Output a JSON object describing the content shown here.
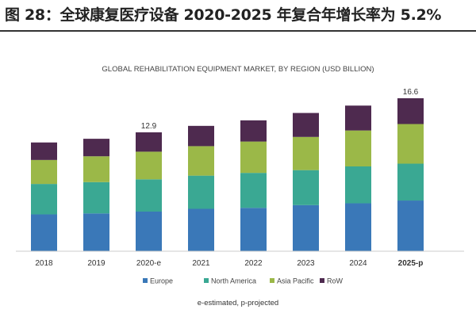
{
  "heading": "图 28：全球康复医疗设备 2020-2025 年复合年增长率为 5.2%",
  "chart_data": {
    "type": "bar",
    "stacked": true,
    "title": "GLOBAL REHABILITATION EQUIPMENT MARKET, BY REGION (USD BILLION)",
    "categories": [
      "2018",
      "2019",
      "2020-e",
      "2021",
      "2022",
      "2023",
      "2024",
      "2025-p"
    ],
    "series": [
      {
        "name": "Europe",
        "color": "#3a78b8",
        "values": [
          4.0,
          4.1,
          4.3,
          4.6,
          4.7,
          5.0,
          5.2,
          5.5
        ]
      },
      {
        "name": "North America",
        "color": "#3aa893",
        "values": [
          3.3,
          3.4,
          3.5,
          3.6,
          3.8,
          3.8,
          4.0,
          4.0
        ]
      },
      {
        "name": "Asia Pacific",
        "color": "#9bb848",
        "values": [
          2.6,
          2.8,
          3.0,
          3.2,
          3.4,
          3.6,
          3.9,
          4.3
        ]
      },
      {
        "name": "RoW",
        "color": "#4e2a4f",
        "values": [
          1.9,
          1.9,
          2.1,
          2.2,
          2.3,
          2.6,
          2.7,
          2.8
        ]
      }
    ],
    "data_labels": [
      {
        "category": "2020-e",
        "text": "12.9"
      },
      {
        "category": "2025-p",
        "text": "16.6"
      }
    ],
    "xlabel": "",
    "ylabel": "",
    "ylim": [
      0,
      17
    ],
    "grid": false,
    "legend": "bottom",
    "footnote": "e-estimated, p-projected"
  }
}
